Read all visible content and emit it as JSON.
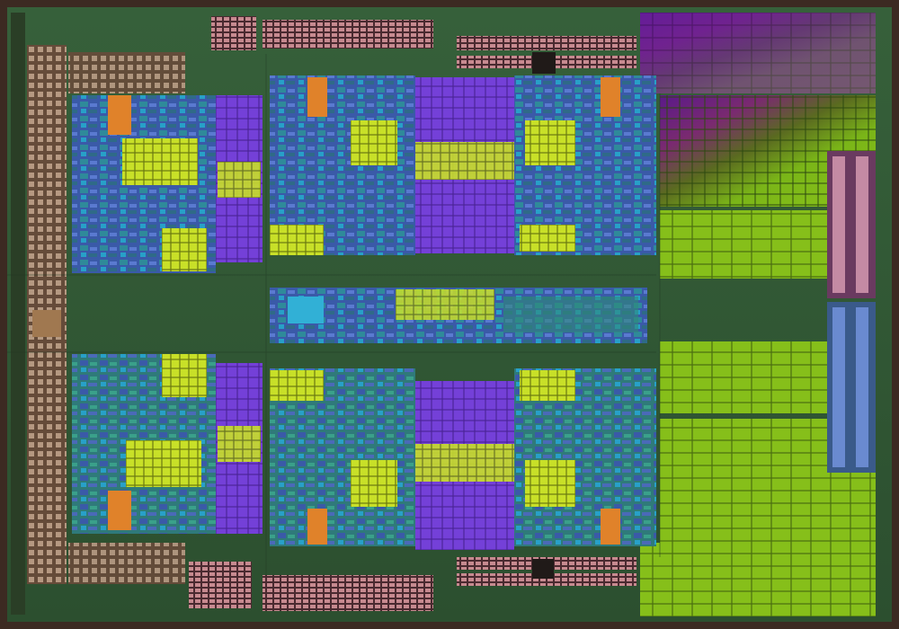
{
  "image": {
    "subject": "processor-die-photograph",
    "description_visible_text": "",
    "palette": {
      "substrate": "#355a36",
      "substrate_dark": "#233f24",
      "outer_frame": "#3c2a22",
      "io_pad": "#c4a08a",
      "io_pad_dark": "#6b4a3a",
      "cache_violet": "#7a3fe0",
      "cache_violet_dark": "#4b1f9a",
      "logic_blue": "#3a5fb0",
      "logic_cyan": "#31b0d6",
      "logic_yellow": "#c9e02a",
      "logic_orange": "#e0822a",
      "logic_teal": "#2f8a7a",
      "l3_green": "#8cc21a",
      "l3_green_dark": "#4f7a12",
      "l3_purple": "#6a1ea0",
      "l3_magenta": "#9a2a8a",
      "pink_block": "#d7a3a8"
    },
    "regions": [
      {
        "name": "core-upper-left",
        "kind": "cpu-core"
      },
      {
        "name": "core-upper-middle",
        "kind": "cpu-core"
      },
      {
        "name": "core-upper-right",
        "kind": "cpu-core"
      },
      {
        "name": "core-lower-left",
        "kind": "cpu-core"
      },
      {
        "name": "core-lower-middle",
        "kind": "cpu-core"
      },
      {
        "name": "core-lower-right",
        "kind": "cpu-core"
      },
      {
        "name": "center-interconnect",
        "kind": "uncore"
      },
      {
        "name": "shared-cache-array",
        "kind": "cache"
      },
      {
        "name": "left-io-ring",
        "kind": "io"
      }
    ]
  }
}
